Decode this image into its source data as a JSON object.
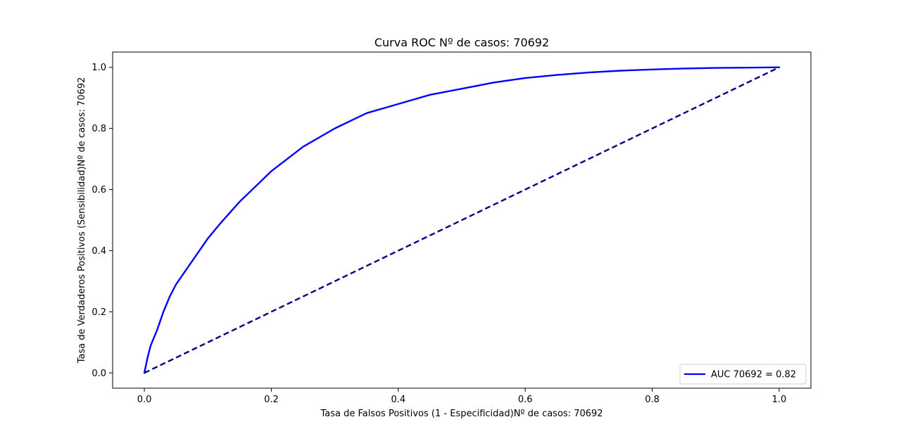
{
  "chart_data": {
    "type": "line",
    "title": "Curva ROC Nº de casos: 70692",
    "xlabel": "Tasa de Falsos Positivos (1 - Especificidad)Nº de casos: 70692",
    "ylabel": "Tasa de Verdaderos Positivos (Sensibilidad)Nº de casos: 70692",
    "xlim": [
      -0.05,
      1.05
    ],
    "ylim": [
      -0.05,
      1.05
    ],
    "xticks": [
      0.0,
      0.2,
      0.4,
      0.6,
      0.8,
      1.0
    ],
    "yticks": [
      0.0,
      0.2,
      0.4,
      0.6,
      0.8,
      1.0
    ],
    "xtick_labels": [
      "0.0",
      "0.2",
      "0.4",
      "0.6",
      "0.8",
      "1.0"
    ],
    "ytick_labels": [
      "0.0",
      "0.2",
      "0.4",
      "0.6",
      "0.8",
      "1.0"
    ],
    "grid": false,
    "legend_position": "bottom-right",
    "series": [
      {
        "name": "AUC 70692 = 0.82",
        "color": "#0000ff",
        "style": "solid",
        "x": [
          0.0,
          0.005,
          0.01,
          0.02,
          0.03,
          0.04,
          0.05,
          0.06,
          0.08,
          0.1,
          0.12,
          0.15,
          0.18,
          0.2,
          0.25,
          0.3,
          0.35,
          0.4,
          0.45,
          0.5,
          0.55,
          0.6,
          0.65,
          0.7,
          0.75,
          0.8,
          0.85,
          0.9,
          0.95,
          1.0
        ],
        "y": [
          0.0,
          0.05,
          0.09,
          0.14,
          0.2,
          0.25,
          0.29,
          0.32,
          0.38,
          0.44,
          0.49,
          0.56,
          0.62,
          0.66,
          0.74,
          0.8,
          0.85,
          0.88,
          0.91,
          0.93,
          0.95,
          0.965,
          0.975,
          0.983,
          0.989,
          0.993,
          0.996,
          0.998,
          0.999,
          1.0
        ]
      },
      {
        "color": "#00008b",
        "style": "dashed",
        "x": [
          0.0,
          1.0
        ],
        "y": [
          0.0,
          1.0
        ]
      }
    ]
  }
}
